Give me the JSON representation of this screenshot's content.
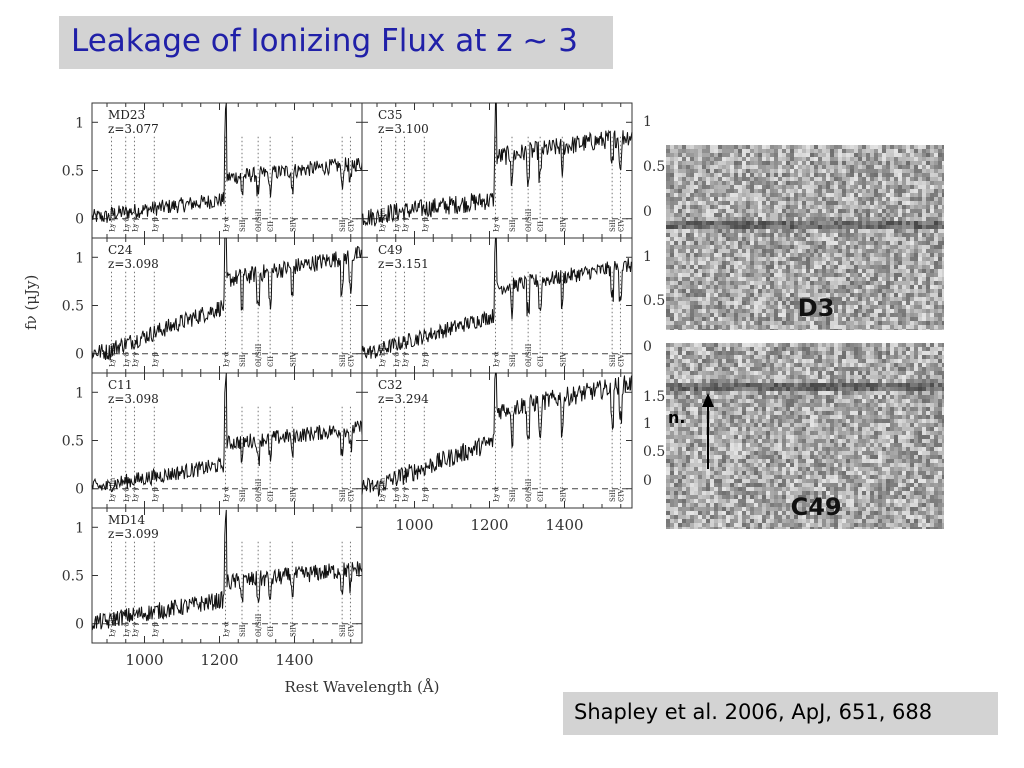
{
  "slide": {
    "title": "Leakage of  Ionizing Flux at z ~ 3",
    "citation": "Shapley et al. 2006, ApJ, 651, 688"
  },
  "figure": {
    "ylabel": "fν (μJy)",
    "xlabel": "Rest Wavelength (Å)",
    "xticks": [
      "1000",
      "1200",
      "1400"
    ],
    "line_labels": [
      "Ly Lim",
      "Ly δ",
      "Ly γ",
      "Ly β",
      "Ly α",
      "SiII",
      "OI/SiII",
      "CII",
      "SiIV",
      "SiII",
      "CIV"
    ],
    "image_panels": [
      {
        "label": "D3"
      },
      {
        "label": "C49"
      }
    ],
    "right_axis_labels": [
      "1",
      "0.5",
      "0",
      "1",
      "0.5",
      "0",
      "1.5",
      "1",
      "0.5",
      "0"
    ],
    "arrow_text": "n."
  },
  "chart_data": [
    {
      "type": "line",
      "name": "MD23",
      "redshift": "z=3.077",
      "ylim": [
        -0.2,
        1.2
      ],
      "xlim": [
        860,
        1580
      ],
      "yticks": [
        "1",
        "0.5",
        "0"
      ],
      "break_x": 1216,
      "level_before": 0.15,
      "level_after": 0.5,
      "noise": 0.08
    },
    {
      "type": "line",
      "name": "C35",
      "redshift": "z=3.100",
      "ylim": [
        -0.2,
        1.2
      ],
      "xlim": [
        860,
        1580
      ],
      "yticks": [
        "1",
        "0.5",
        "0"
      ],
      "break_x": 1216,
      "level_before": 0.15,
      "level_after": 0.75,
      "noise": 0.1
    },
    {
      "type": "line",
      "name": "C24",
      "redshift": "z=3.098",
      "ylim": [
        -0.2,
        1.2
      ],
      "xlim": [
        860,
        1580
      ],
      "yticks": [
        "1",
        "0.5",
        "0"
      ],
      "break_x": 1216,
      "level_before": 0.45,
      "level_after": 0.9,
      "noise": 0.09
    },
    {
      "type": "line",
      "name": "C49",
      "redshift": "z=3.151",
      "ylim": [
        -0.2,
        1.2
      ],
      "xlim": [
        860,
        1580
      ],
      "yticks": [
        "1",
        "0.5",
        "0"
      ],
      "break_x": 1216,
      "level_before": 0.35,
      "level_after": 0.8,
      "noise": 0.08
    },
    {
      "type": "line",
      "name": "C11",
      "redshift": "z=3.098",
      "ylim": [
        -0.2,
        1.2
      ],
      "xlim": [
        860,
        1580
      ],
      "yticks": [
        "1",
        "0.5",
        "0"
      ],
      "break_x": 1216,
      "level_before": 0.2,
      "level_after": 0.55,
      "noise": 0.08
    },
    {
      "type": "line",
      "name": "C32",
      "redshift": "z=3.294",
      "ylim": [
        -0.2,
        1.2
      ],
      "xlim": [
        860,
        1580
      ],
      "yticks": [
        "1",
        "0.5",
        "0"
      ],
      "break_x": 1216,
      "level_before": 0.45,
      "level_after": 0.95,
      "noise": 0.1
    },
    {
      "type": "line",
      "name": "MD14",
      "redshift": "z=3.099",
      "ylim": [
        -0.2,
        1.2
      ],
      "xlim": [
        860,
        1580
      ],
      "yticks": [
        "1",
        "0.5",
        "0"
      ],
      "break_x": 1216,
      "level_before": 0.2,
      "level_after": 0.5,
      "noise": 0.09
    }
  ]
}
